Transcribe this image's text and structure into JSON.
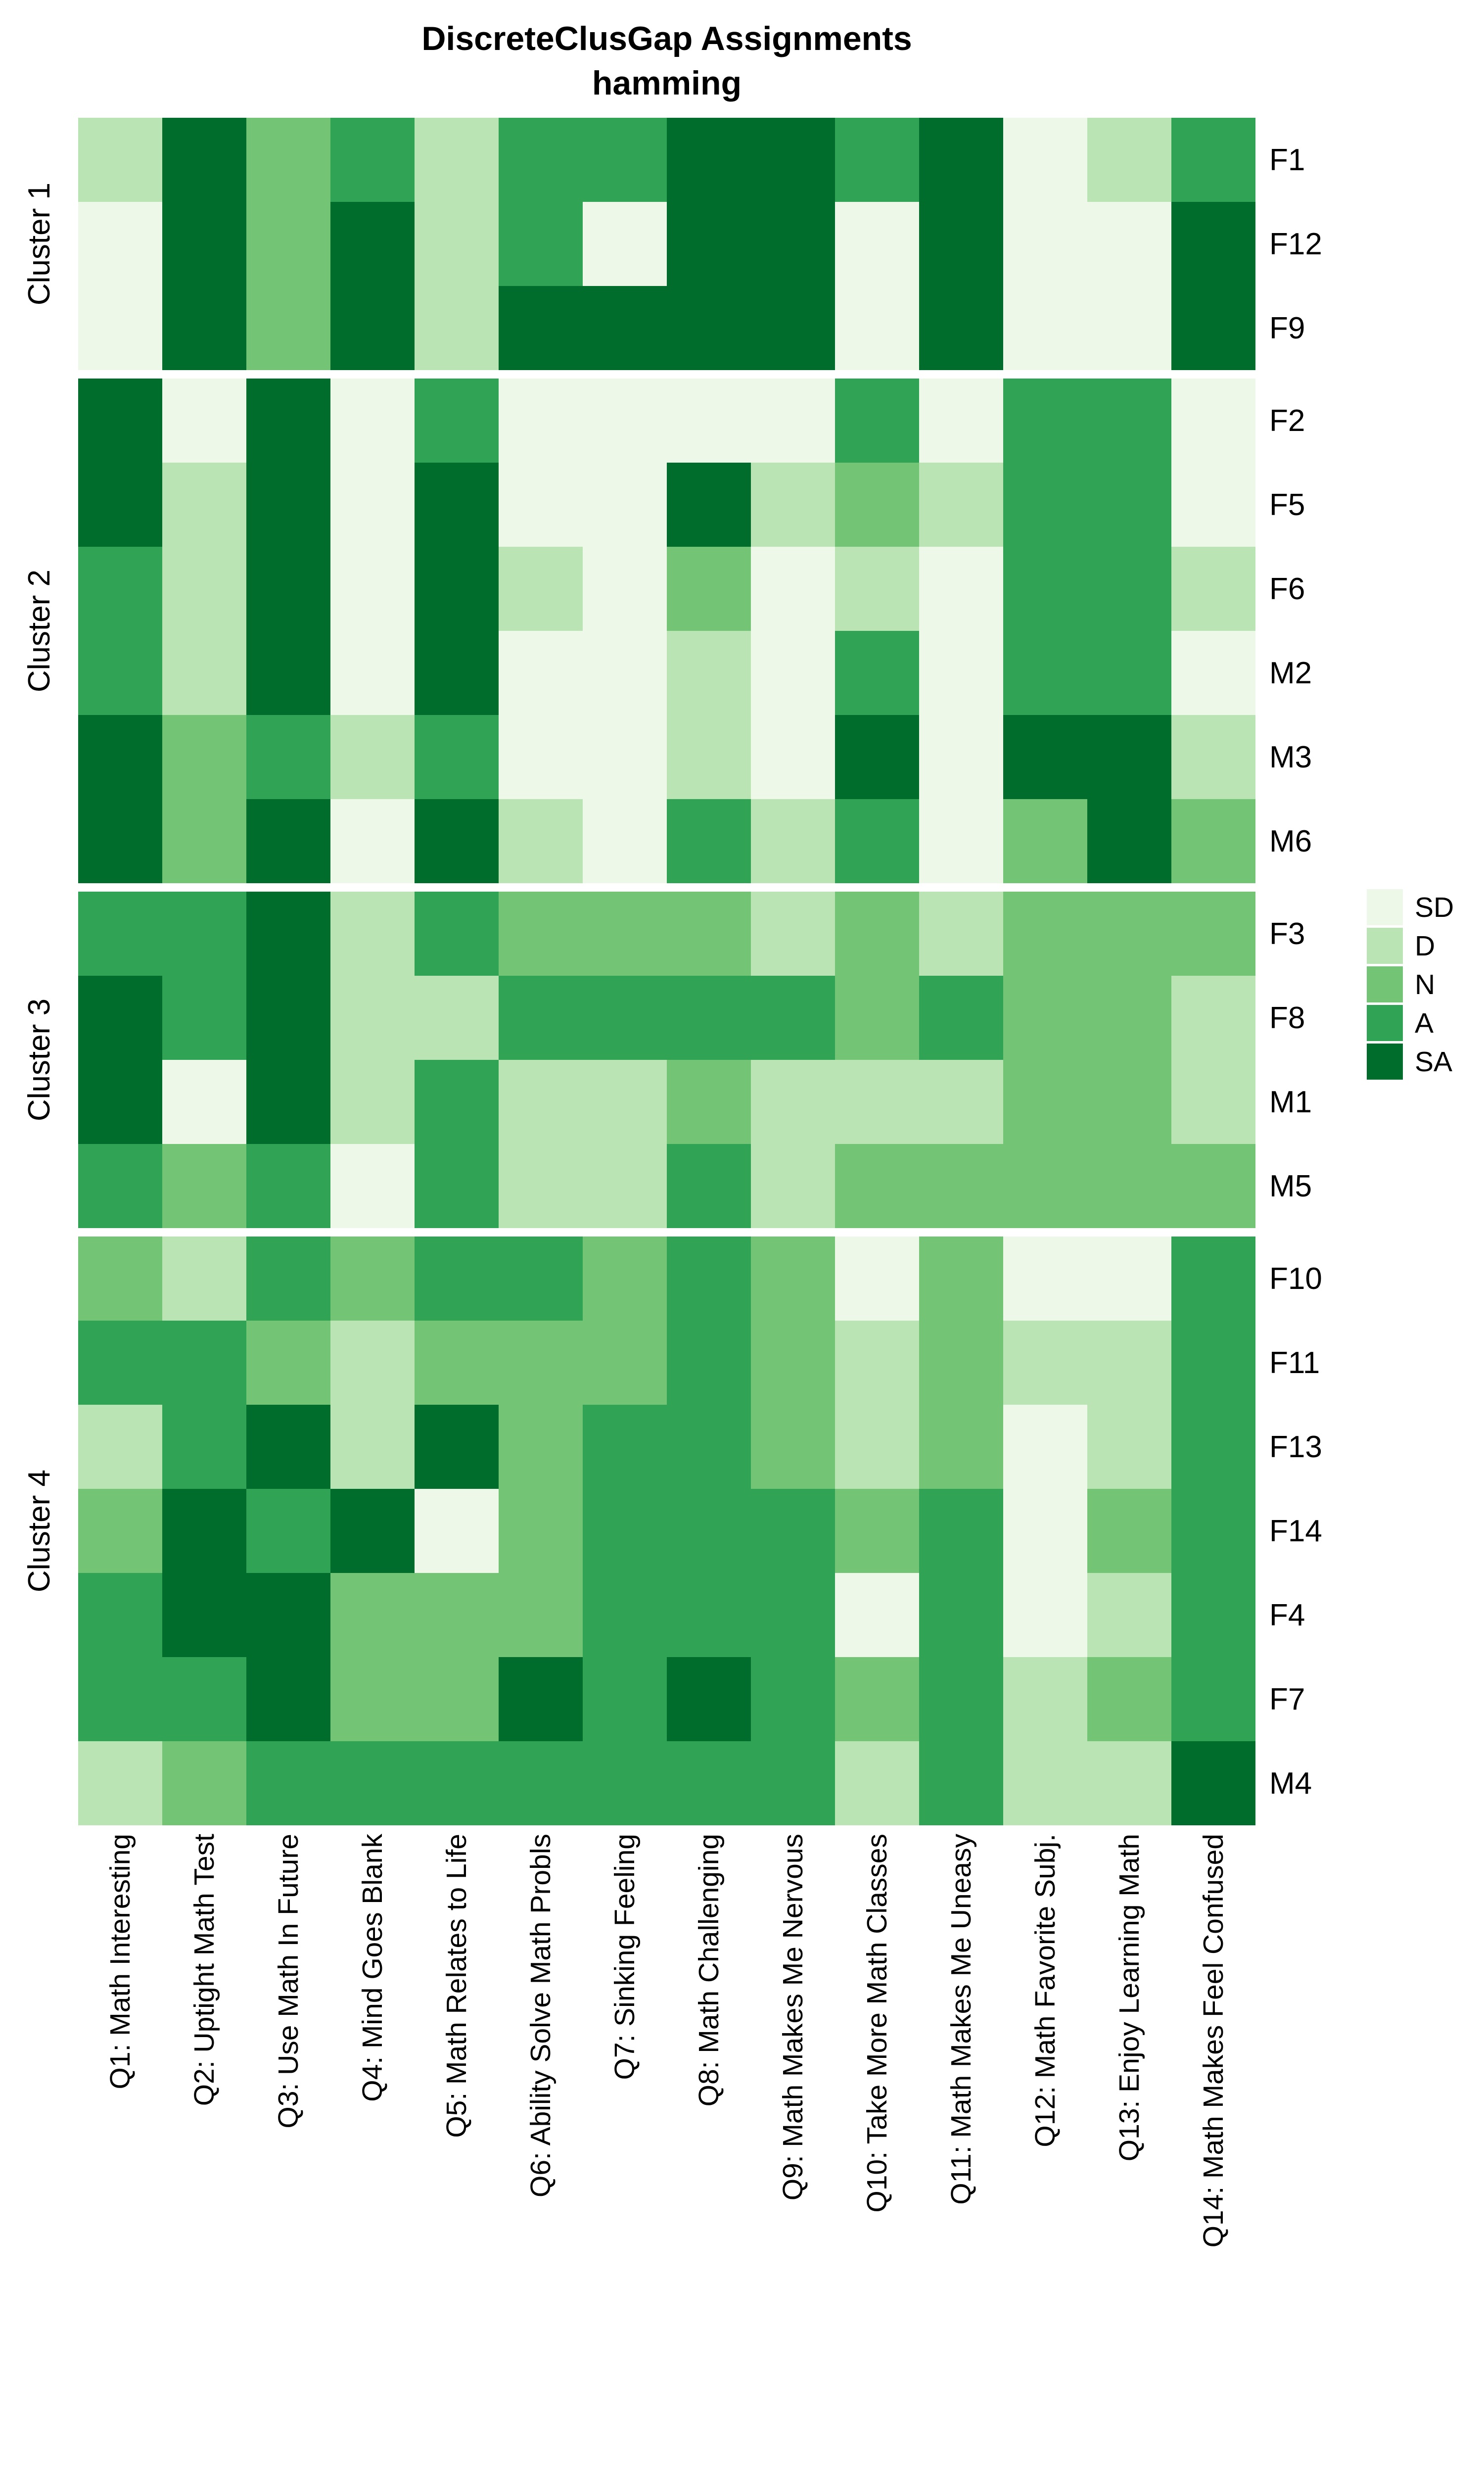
{
  "title": {
    "line1": "DiscreteClusGap Assignments",
    "line2": "hamming"
  },
  "legend": {
    "entries": [
      {
        "label": "SD",
        "color": "#edf8e9"
      },
      {
        "label": "D",
        "color": "#bae4b3"
      },
      {
        "label": "N",
        "color": "#74c476"
      },
      {
        "label": "A",
        "color": "#31a354"
      },
      {
        "label": "SA",
        "color": "#006d2c"
      }
    ]
  },
  "chart_data": {
    "type": "heatmap",
    "title": "DiscreteClusGap Assignments",
    "subtitle": "hamming",
    "value_scale": [
      "SD",
      "D",
      "N",
      "A",
      "SA"
    ],
    "colors": {
      "SD": "#edf8e9",
      "D": "#bae4b3",
      "N": "#74c476",
      "A": "#31a354",
      "SA": "#006d2c"
    },
    "x_categories": [
      "Q1: Math Interesting",
      "Q2: Uptight Math Test",
      "Q3: Use Math In Future",
      "Q4: Mind Goes Blank",
      "Q5: Math Relates to Life",
      "Q6: Ability Solve Math Probls",
      "Q7: Sinking Feeling",
      "Q8: Math Challenging",
      "Q9: Math Makes Me Nervous",
      "Q10: Take More Math Classes",
      "Q11: Math Makes Me Uneasy",
      "Q12: Math Favorite Subj.",
      "Q13: Enjoy Learning Math",
      "Q14: Math Makes Feel Confused"
    ],
    "clusters": [
      {
        "name": "Cluster 1",
        "rows": [
          {
            "label": "F1",
            "values": [
              "D",
              "SA",
              "N",
              "A",
              "D",
              "A",
              "A",
              "SA",
              "SA",
              "A",
              "SA",
              "SD",
              "D",
              "A"
            ]
          },
          {
            "label": "F12",
            "values": [
              "SD",
              "SA",
              "N",
              "SA",
              "D",
              "A",
              "SD",
              "SA",
              "SA",
              "SD",
              "SA",
              "SD",
              "SD",
              "SA"
            ]
          },
          {
            "label": "F9",
            "values": [
              "SD",
              "SA",
              "N",
              "SA",
              "D",
              "SA",
              "SA",
              "SA",
              "SA",
              "SD",
              "SA",
              "SD",
              "SD",
              "SA"
            ]
          }
        ]
      },
      {
        "name": "Cluster 2",
        "rows": [
          {
            "label": "F2",
            "values": [
              "SA",
              "SD",
              "SA",
              "SD",
              "A",
              "SD",
              "SD",
              "SD",
              "SD",
              "A",
              "SD",
              "A",
              "A",
              "SD"
            ]
          },
          {
            "label": "F5",
            "values": [
              "SA",
              "D",
              "SA",
              "SD",
              "SA",
              "SD",
              "SD",
              "SA",
              "D",
              "N",
              "D",
              "A",
              "A",
              "SD"
            ]
          },
          {
            "label": "F6",
            "values": [
              "A",
              "D",
              "SA",
              "SD",
              "SA",
              "D",
              "SD",
              "N",
              "SD",
              "D",
              "SD",
              "A",
              "A",
              "D"
            ]
          },
          {
            "label": "M2",
            "values": [
              "A",
              "D",
              "SA",
              "SD",
              "SA",
              "SD",
              "SD",
              "D",
              "SD",
              "A",
              "SD",
              "A",
              "A",
              "SD"
            ]
          },
          {
            "label": "M3",
            "values": [
              "SA",
              "N",
              "A",
              "D",
              "A",
              "SD",
              "SD",
              "D",
              "SD",
              "SA",
              "SD",
              "SA",
              "SA",
              "D"
            ]
          },
          {
            "label": "M6",
            "values": [
              "SA",
              "N",
              "SA",
              "SD",
              "SA",
              "D",
              "SD",
              "A",
              "D",
              "A",
              "SD",
              "N",
              "SA",
              "N"
            ]
          }
        ]
      },
      {
        "name": "Cluster 3",
        "rows": [
          {
            "label": "F3",
            "values": [
              "A",
              "A",
              "SA",
              "D",
              "A",
              "N",
              "N",
              "N",
              "D",
              "N",
              "D",
              "N",
              "N",
              "N"
            ]
          },
          {
            "label": "F8",
            "values": [
              "SA",
              "A",
              "SA",
              "D",
              "D",
              "A",
              "A",
              "A",
              "A",
              "N",
              "A",
              "N",
              "N",
              "D"
            ]
          },
          {
            "label": "M1",
            "values": [
              "SA",
              "SD",
              "SA",
              "D",
              "A",
              "D",
              "D",
              "N",
              "D",
              "D",
              "D",
              "N",
              "N",
              "D"
            ]
          },
          {
            "label": "M5",
            "values": [
              "A",
              "N",
              "A",
              "SD",
              "A",
              "D",
              "D",
              "A",
              "D",
              "N",
              "N",
              "N",
              "N",
              "N"
            ]
          }
        ]
      },
      {
        "name": "Cluster 4",
        "rows": [
          {
            "label": "F10",
            "values": [
              "N",
              "D",
              "A",
              "N",
              "A",
              "A",
              "N",
              "A",
              "N",
              "SD",
              "N",
              "SD",
              "SD",
              "A"
            ]
          },
          {
            "label": "F11",
            "values": [
              "A",
              "A",
              "N",
              "D",
              "N",
              "N",
              "N",
              "A",
              "N",
              "D",
              "N",
              "D",
              "D",
              "A"
            ]
          },
          {
            "label": "F13",
            "values": [
              "D",
              "A",
              "SA",
              "D",
              "SA",
              "N",
              "A",
              "A",
              "N",
              "D",
              "N",
              "SD",
              "D",
              "A"
            ]
          },
          {
            "label": "F14",
            "values": [
              "N",
              "SA",
              "A",
              "SA",
              "SD",
              "N",
              "A",
              "A",
              "A",
              "N",
              "A",
              "SD",
              "N",
              "A"
            ]
          },
          {
            "label": "F4",
            "values": [
              "A",
              "SA",
              "SA",
              "N",
              "N",
              "N",
              "A",
              "A",
              "A",
              "SD",
              "A",
              "SD",
              "D",
              "A"
            ]
          },
          {
            "label": "F7",
            "values": [
              "A",
              "A",
              "SA",
              "N",
              "N",
              "SA",
              "A",
              "SA",
              "A",
              "N",
              "A",
              "D",
              "N",
              "A"
            ]
          },
          {
            "label": "M4",
            "values": [
              "D",
              "N",
              "A",
              "A",
              "A",
              "A",
              "A",
              "A",
              "A",
              "D",
              "A",
              "D",
              "D",
              "SA"
            ]
          }
        ]
      }
    ]
  }
}
